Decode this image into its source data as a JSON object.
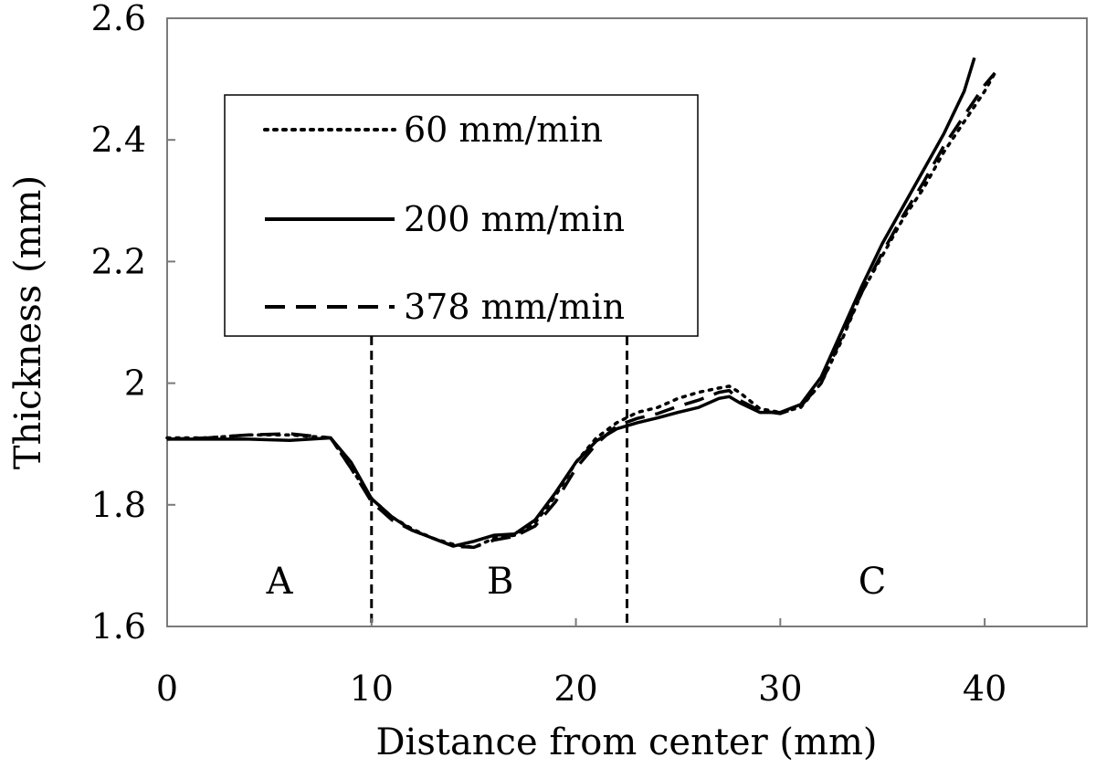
{
  "chart_data": {
    "type": "line",
    "title": "",
    "xlabel": "Distance from center (mm)",
    "ylabel": "Thickness (mm)",
    "xlim": [
      0,
      45
    ],
    "ylim": [
      1.6,
      2.6
    ],
    "xticks": [
      0,
      10,
      20,
      30,
      40
    ],
    "yticks": [
      1.6,
      1.8,
      2,
      2.2,
      2.4,
      2.6
    ],
    "xtick_labels": [
      "0",
      "10",
      "20",
      "30",
      "40"
    ],
    "ytick_labels": [
      "1.6",
      "1.8",
      "2",
      "2.2",
      "2.4",
      "2.6"
    ],
    "grid": false,
    "legend": {
      "placement": "top-left"
    },
    "series": [
      {
        "name": "60 mm/min",
        "style": "dotted",
        "x": [
          0,
          2,
          4,
          6,
          8,
          9,
          10,
          11,
          12,
          13,
          14,
          15,
          16,
          17,
          18,
          19,
          20,
          21,
          22,
          23,
          24,
          25,
          26,
          27,
          27.5,
          28,
          29,
          30,
          31,
          32,
          33,
          34,
          35,
          36,
          37,
          38,
          39,
          40,
          40.5
        ],
        "y": [
          1.91,
          1.91,
          1.915,
          1.915,
          1.91,
          1.86,
          1.81,
          1.78,
          1.76,
          1.745,
          1.735,
          1.73,
          1.745,
          1.75,
          1.77,
          1.815,
          1.87,
          1.91,
          1.935,
          1.952,
          1.96,
          1.975,
          1.985,
          1.992,
          1.995,
          1.985,
          1.958,
          1.952,
          1.96,
          2.0,
          2.07,
          2.15,
          2.21,
          2.27,
          2.32,
          2.38,
          2.43,
          2.48,
          2.51
        ]
      },
      {
        "name": "200 mm/min",
        "style": "solid",
        "x": [
          0,
          2,
          4,
          6,
          8,
          9,
          10,
          11,
          12,
          13,
          14,
          15,
          16,
          17,
          18,
          19,
          20,
          21,
          22,
          23,
          24,
          25,
          26,
          27,
          27.5,
          28,
          29,
          30,
          31,
          32,
          33,
          34,
          35,
          36,
          37,
          38,
          39,
          39.5
        ],
        "y": [
          1.908,
          1.908,
          1.908,
          1.906,
          1.91,
          1.87,
          1.81,
          1.78,
          1.758,
          1.745,
          1.732,
          1.74,
          1.75,
          1.752,
          1.775,
          1.82,
          1.87,
          1.905,
          1.925,
          1.935,
          1.943,
          1.952,
          1.96,
          1.975,
          1.978,
          1.968,
          1.952,
          1.952,
          1.965,
          2.01,
          2.085,
          2.16,
          2.23,
          2.29,
          2.35,
          2.41,
          2.48,
          2.535
        ]
      },
      {
        "name": "378 mm/min",
        "style": "dashed",
        "x": [
          0,
          2,
          4,
          6,
          8,
          9,
          10,
          11,
          12,
          13,
          14,
          15,
          16,
          17,
          18,
          19,
          20,
          21,
          22,
          23,
          24,
          25,
          26,
          27,
          27.5,
          28,
          29,
          30,
          31,
          32,
          33,
          34,
          35,
          36,
          37,
          38,
          39,
          40,
          40.5
        ],
        "y": [
          1.908,
          1.91,
          1.915,
          1.917,
          1.91,
          1.86,
          1.805,
          1.775,
          1.758,
          1.745,
          1.732,
          1.73,
          1.742,
          1.748,
          1.765,
          1.805,
          1.86,
          1.9,
          1.93,
          1.942,
          1.95,
          1.962,
          1.972,
          1.985,
          1.988,
          1.972,
          1.955,
          1.95,
          1.962,
          2.0,
          2.075,
          2.15,
          2.215,
          2.275,
          2.33,
          2.39,
          2.44,
          2.49,
          2.51
        ]
      }
    ],
    "dividers": [
      {
        "x": 10,
        "style": "dashed"
      },
      {
        "x": 22.5,
        "style": "dashed"
      }
    ],
    "regions": [
      {
        "label": "A",
        "x": 5.5,
        "y": 1.66
      },
      {
        "label": "B",
        "x": 16.3,
        "y": 1.66
      },
      {
        "label": "C",
        "x": 34.5,
        "y": 1.66
      }
    ]
  }
}
